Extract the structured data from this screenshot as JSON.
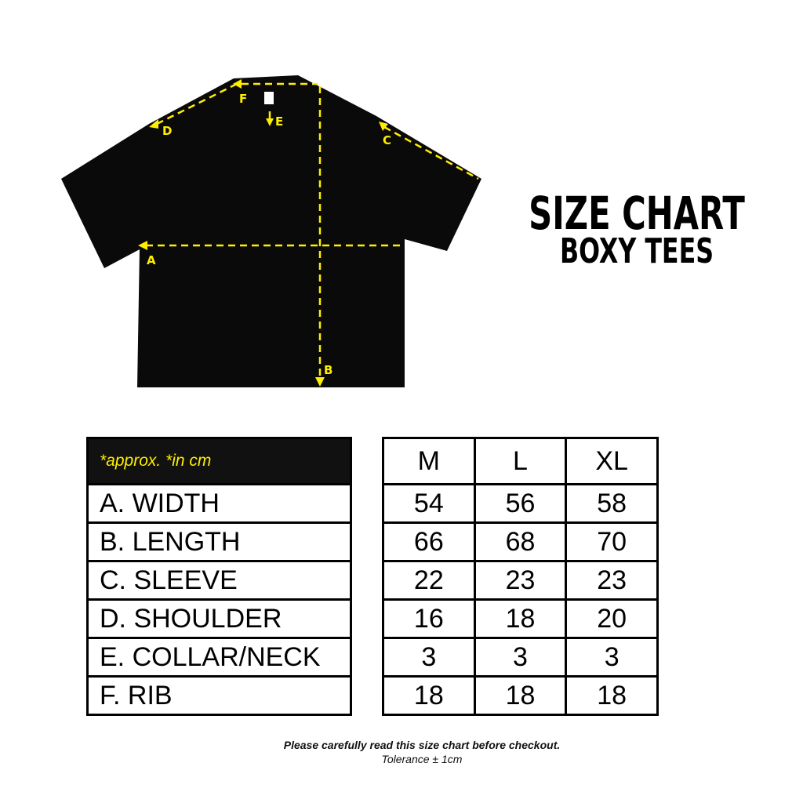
{
  "title": "SIZE CHART",
  "subtitle": "BOXY TEES",
  "accent_color": "#ffee00",
  "diagram_labels": [
    "A",
    "B",
    "C",
    "D",
    "E",
    "F"
  ],
  "table": {
    "note": "*approx. *in cm",
    "sizes": [
      "M",
      "L",
      "XL"
    ],
    "rows": [
      {
        "label": "A. WIDTH",
        "values": [
          "54",
          "56",
          "58"
        ]
      },
      {
        "label": "B. LENGTH",
        "values": [
          "66",
          "68",
          "70"
        ]
      },
      {
        "label": "C. SLEEVE",
        "values": [
          "22",
          "23",
          "23"
        ]
      },
      {
        "label": "D. SHOULDER",
        "values": [
          "16",
          "18",
          "20"
        ]
      },
      {
        "label": "E. COLLAR/NECK",
        "values": [
          "3",
          "3",
          "3"
        ]
      },
      {
        "label": "F. RIB",
        "values": [
          "18",
          "18",
          "18"
        ]
      }
    ]
  },
  "footer": {
    "line1": "Please carefully read this size chart before checkout.",
    "line2": "Tolerance ± 1cm"
  }
}
